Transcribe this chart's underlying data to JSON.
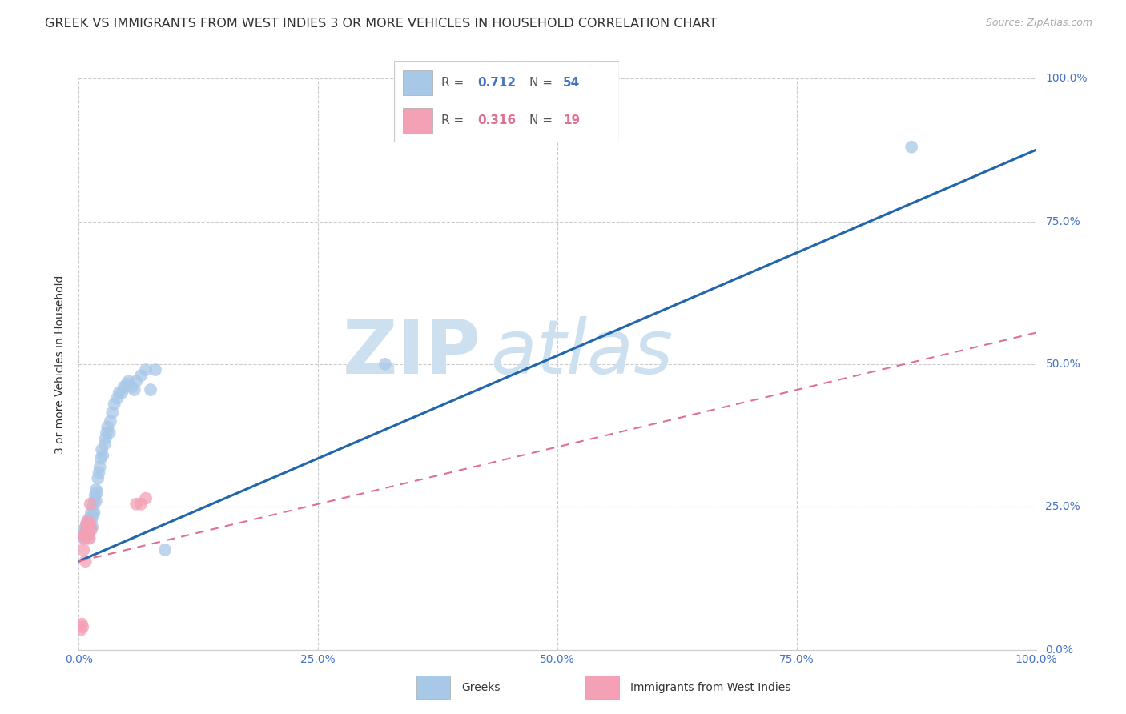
{
  "title": "GREEK VS IMMIGRANTS FROM WEST INDIES 3 OR MORE VEHICLES IN HOUSEHOLD CORRELATION CHART",
  "source": "Source: ZipAtlas.com",
  "ylabel": "3 or more Vehicles in Household",
  "xlim": [
    0,
    1.0
  ],
  "ylim": [
    0,
    1.0
  ],
  "xticks": [
    0.0,
    0.25,
    0.5,
    0.75,
    1.0
  ],
  "xtick_labels": [
    "0.0%",
    "25.0%",
    "50.0%",
    "75.0%",
    "100.0%"
  ],
  "yticks": [
    0.0,
    0.25,
    0.5,
    0.75,
    1.0
  ],
  "ytick_labels": [
    "0.0%",
    "25.0%",
    "50.0%",
    "75.0%",
    "100.0%"
  ],
  "R_greek": "0.712",
  "N_greek": "54",
  "R_west_indies": "0.316",
  "N_west_indies": "19",
  "greek_color": "#a8c8e8",
  "west_indies_color": "#f4a0b5",
  "greek_line_color": "#2166ac",
  "west_indies_line_color": "#e07090",
  "watermark_zip": "ZIP",
  "watermark_atlas": "atlas",
  "watermark_color": "#cce0f0",
  "background_color": "#ffffff",
  "grid_color": "#cccccc",
  "title_fontsize": 11.5,
  "axis_label_fontsize": 10,
  "tick_fontsize": 10,
  "source_fontsize": 9,
  "greek_x": [
    0.004,
    0.005,
    0.006,
    0.007,
    0.008,
    0.008,
    0.009,
    0.009,
    0.01,
    0.01,
    0.011,
    0.011,
    0.012,
    0.013,
    0.013,
    0.014,
    0.015,
    0.015,
    0.016,
    0.016,
    0.017,
    0.018,
    0.018,
    0.019,
    0.02,
    0.021,
    0.022,
    0.023,
    0.024,
    0.025,
    0.027,
    0.028,
    0.029,
    0.03,
    0.032,
    0.033,
    0.035,
    0.037,
    0.04,
    0.042,
    0.045,
    0.047,
    0.05,
    0.052,
    0.055,
    0.058,
    0.06,
    0.065,
    0.07,
    0.075,
    0.08,
    0.09,
    0.32,
    0.87
  ],
  "greek_y": [
    0.2,
    0.195,
    0.21,
    0.215,
    0.2,
    0.22,
    0.205,
    0.225,
    0.195,
    0.215,
    0.21,
    0.23,
    0.22,
    0.225,
    0.24,
    0.215,
    0.25,
    0.235,
    0.26,
    0.24,
    0.27,
    0.26,
    0.28,
    0.275,
    0.3,
    0.31,
    0.32,
    0.335,
    0.35,
    0.34,
    0.36,
    0.37,
    0.38,
    0.39,
    0.38,
    0.4,
    0.415,
    0.43,
    0.44,
    0.45,
    0.45,
    0.46,
    0.465,
    0.47,
    0.46,
    0.455,
    0.47,
    0.48,
    0.49,
    0.455,
    0.49,
    0.175,
    0.5,
    0.88
  ],
  "west_indies_x": [
    0.002,
    0.003,
    0.004,
    0.005,
    0.005,
    0.006,
    0.007,
    0.007,
    0.008,
    0.009,
    0.01,
    0.01,
    0.011,
    0.012,
    0.012,
    0.013,
    0.06,
    0.065,
    0.07
  ],
  "west_indies_y": [
    0.035,
    0.045,
    0.04,
    0.175,
    0.2,
    0.195,
    0.155,
    0.205,
    0.22,
    0.215,
    0.225,
    0.2,
    0.195,
    0.215,
    0.255,
    0.21,
    0.255,
    0.255,
    0.265
  ],
  "blue_line_x0": 0.0,
  "blue_line_y0": 0.155,
  "blue_line_x1": 1.0,
  "blue_line_y1": 0.875,
  "pink_line_x0": 0.0,
  "pink_line_y0": 0.155,
  "pink_line_x1": 1.0,
  "pink_line_y1": 0.555
}
